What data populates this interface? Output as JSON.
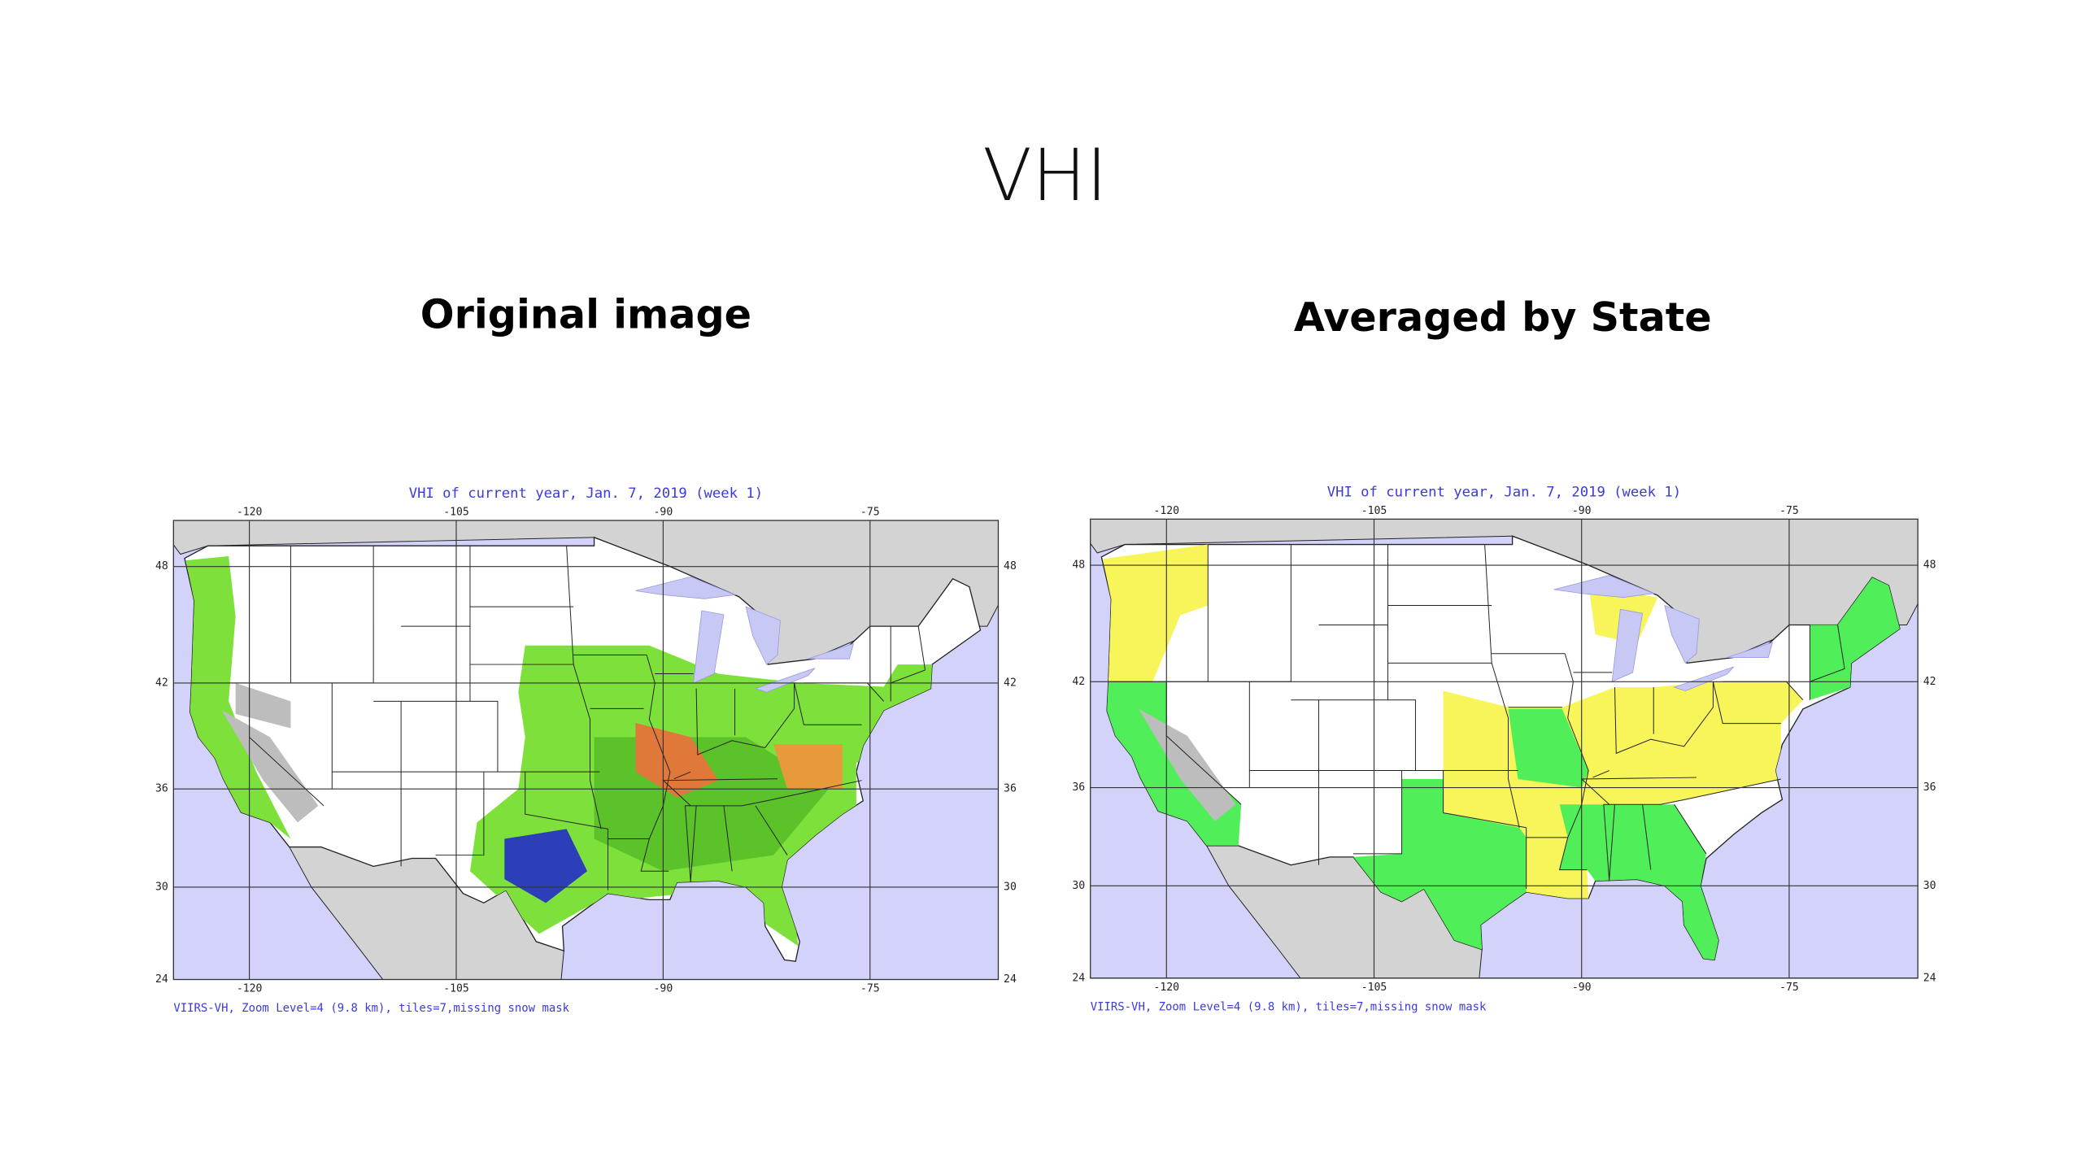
{
  "title": "VHI",
  "panels": [
    {
      "heading": "Original image",
      "map": {
        "title": "VHI of current year, Jan. 7, 2019 (week 1)",
        "xlim": [
          -125.5,
          -65.7
        ],
        "ylim": [
          24,
          50.2
        ],
        "lon_ticks": [
          -120,
          -105,
          -90,
          -75
        ],
        "lat_ticks": [
          48,
          42,
          36,
          30,
          24
        ],
        "footer": "VIIRS-VH, Zoom Level=4 (9.8 km), tiles=7,missing snow mask"
      }
    },
    {
      "heading": "Averaged by State",
      "map": {
        "title": "VHI of current year, Jan. 7, 2019 (week 1)",
        "xlim": [
          -125.5,
          -65.7
        ],
        "ylim": [
          24,
          50.2
        ],
        "lon_ticks": [
          -120,
          -105,
          -90,
          -75
        ],
        "lat_ticks": [
          48,
          42,
          36,
          30,
          24
        ],
        "footer": "VIIRS-VH, Zoom Level=4 (9.8 km), tiles=7,missing snow mask"
      }
    }
  ]
}
